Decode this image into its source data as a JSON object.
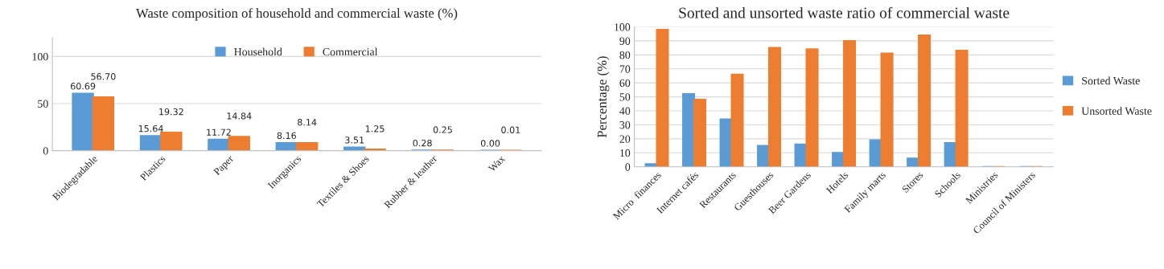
{
  "chart_data": [
    {
      "type": "bar",
      "title": "Waste composition of household and commercial waste (%)",
      "categories": [
        "Biodegradable",
        "Plastics",
        "Paper",
        "Inorganics",
        "Textiles & Shoes",
        "Rubber & leather",
        "Wax"
      ],
      "series": [
        {
          "name": "Household",
          "color": "#5b9bd5",
          "values": [
            60.69,
            15.64,
            11.72,
            8.16,
            3.51,
            0.28,
            0.0
          ],
          "value_labels": [
            "60.69",
            "15.64",
            "11.72",
            "8.16",
            "3.51",
            "0.28",
            "0.00"
          ]
        },
        {
          "name": "Commercial",
          "color": "#ed7d31",
          "values": [
            56.7,
            19.32,
            14.84,
            8.14,
            1.25,
            0.25,
            0.01
          ],
          "value_labels": [
            "56.70",
            "19.32",
            "14.84",
            "8.14",
            "1.25",
            "0.25",
            "0.01"
          ]
        }
      ],
      "ylim": [
        0,
        120
      ],
      "yticks": [
        0,
        50,
        100
      ],
      "grid": "y",
      "legend": "top"
    },
    {
      "type": "bar",
      "title": "Sorted and unsorted waste ratio of commercial waste",
      "ylabel": "Percentage (%)",
      "categories": [
        "Micro  finances",
        "Internet cafés",
        "Restaurants",
        "Guesthouses",
        "Beer Gardens",
        "Hotels",
        "Family marts",
        "Stores",
        "Schools",
        "Ministries",
        "Council of Ministers"
      ],
      "series": [
        {
          "name": "Sorted Waste",
          "color": "#5b9bd5",
          "values": [
            2,
            52,
            34,
            15,
            16,
            10,
            19,
            6,
            17,
            0,
            0
          ]
        },
        {
          "name": "Unsorted Waste",
          "color": "#ed7d31",
          "values": [
            98,
            48,
            66,
            85,
            84,
            90,
            81,
            94,
            83,
            0,
            0
          ]
        }
      ],
      "ylim": [
        0,
        100
      ],
      "yticks": [
        0,
        10,
        20,
        30,
        40,
        50,
        60,
        70,
        80,
        90,
        100
      ],
      "grid": "y",
      "legend": "right"
    }
  ]
}
